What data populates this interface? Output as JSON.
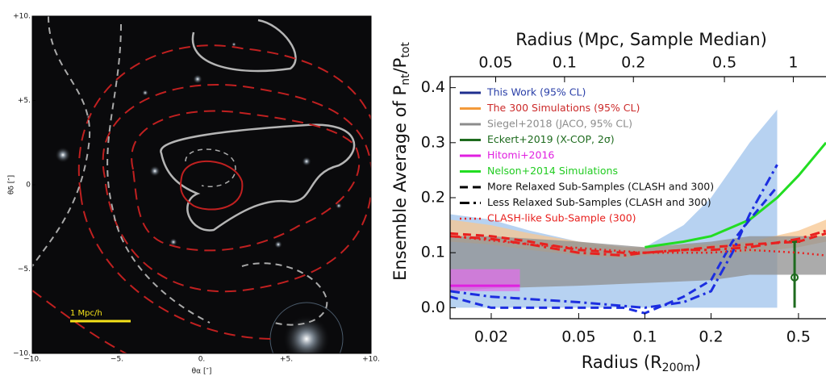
{
  "chart_data": [
    {
      "type": "image",
      "xlabel": "θα [″]",
      "ylabel": "θδ [″]",
      "xlim": [
        -10,
        10
      ],
      "ylim": [
        -10,
        10
      ],
      "xticks": [
        {
          "value": -10,
          "label": "−10."
        },
        {
          "value": -5,
          "label": "−5."
        },
        {
          "value": 0,
          "label": "0."
        },
        {
          "value": 5,
          "label": "+5."
        },
        {
          "value": 10,
          "label": "+10."
        }
      ],
      "yticks": [
        {
          "value": -10,
          "label": "−10."
        },
        {
          "value": -5,
          "label": "−5."
        },
        {
          "value": 0,
          "label": "0"
        },
        {
          "value": 5,
          "label": "+5."
        },
        {
          "value": 10,
          "label": "+10."
        }
      ],
      "scale_bar": "1 Mpc/h"
    },
    {
      "type": "line",
      "xlabel": [
        "Radius (R",
        "200m",
        ")"
      ],
      "x2label": "Radius (Mpc, Sample Median)",
      "ylabel": [
        "Ensemble Average of P",
        "nt",
        "/P",
        "tot"
      ],
      "xscale": "log",
      "xlim": [
        0.013,
        0.667
      ],
      "xticks": [
        0.02,
        0.05,
        0.1,
        0.2,
        0.5
      ],
      "x2lim": [
        0.0316,
        1.39
      ],
      "x2ticks": [
        0.05,
        0.1,
        0.2,
        0.5,
        1
      ],
      "ylim": [
        -0.02,
        0.42
      ],
      "yticks": [
        {
          "value": 0,
          "label": "0.0"
        },
        0.1,
        0.2,
        0.3,
        0.4
      ],
      "legend": "upper left",
      "series": [
        {
          "name": "This Work (95% CL)",
          "kind": "band",
          "color": "#1f2f8f",
          "label_color": "#2a3fa8",
          "fill": "#9fc3ec",
          "style": "solid",
          "x": [
            0.013,
            0.02,
            0.03,
            0.05,
            0.08,
            0.1,
            0.15,
            0.2,
            0.3,
            0.4
          ],
          "lower": [
            0,
            0,
            0,
            0,
            0,
            0,
            0,
            0,
            0,
            0
          ],
          "upper": [
            0.17,
            0.16,
            0.14,
            0.12,
            0.105,
            0.11,
            0.15,
            0.2,
            0.3,
            0.36
          ]
        },
        {
          "name": "The 300 Simulations (95% CL)",
          "kind": "band",
          "color": "#f39a3a",
          "label_color": "#cc2a2a",
          "fill": "#f7c58f",
          "style": "solid",
          "x": [
            0.013,
            0.02,
            0.03,
            0.05,
            0.08,
            0.1,
            0.15,
            0.2,
            0.3,
            0.5,
            0.667
          ],
          "lower": [
            0.12,
            0.115,
            0.105,
            0.095,
            0.09,
            0.095,
            0.1,
            0.1,
            0.1,
            0.11,
            0.12
          ],
          "upper": [
            0.16,
            0.15,
            0.135,
            0.12,
            0.11,
            0.11,
            0.115,
            0.115,
            0.12,
            0.14,
            0.16
          ]
        },
        {
          "name": "Siegel+2018 (JACO, 95% CL)",
          "kind": "band",
          "color": "#8c8c8c",
          "label_color": "#8c8c8c",
          "fill": "#8f8f8f",
          "style": "solid",
          "x": [
            0.013,
            0.02,
            0.05,
            0.1,
            0.2,
            0.3,
            0.5,
            0.667
          ],
          "lower": [
            0.03,
            0.035,
            0.04,
            0.045,
            0.05,
            0.06,
            0.06,
            0.06
          ],
          "upper": [
            0.13,
            0.13,
            0.12,
            0.11,
            0.12,
            0.13,
            0.13,
            0.13
          ]
        },
        {
          "name": "Eckert+2019 (X-COP, 2σ)",
          "kind": "errorbar",
          "color": "#1e6b1e",
          "label_color": "#1e6b1e",
          "style": "solid",
          "x": [
            0.48
          ],
          "values": [
            0.055
          ],
          "lower": [
            0
          ],
          "upper": [
            0.12
          ]
        },
        {
          "name": "Hitomi+2016",
          "kind": "band",
          "color": "#e020e0",
          "label_color": "#e020e0",
          "fill": "#e070e8",
          "style": "solid",
          "x": [
            0.013,
            0.027
          ],
          "values": [
            0.04,
            0.04
          ],
          "lower": [
            0.03,
            0.03
          ],
          "upper": [
            0.07,
            0.07
          ]
        },
        {
          "name": "Nelson+2014 Simulations",
          "kind": "line",
          "color": "#22dd22",
          "label_color": "#22cc22",
          "style": "solid",
          "x": [
            0.1,
            0.15,
            0.2,
            0.3,
            0.4,
            0.5,
            0.667
          ],
          "values": [
            0.11,
            0.12,
            0.13,
            0.16,
            0.2,
            0.24,
            0.3
          ]
        },
        {
          "name": "More Relaxed Sub-Samples (CLASH and 300)",
          "kind": "group",
          "color": "#000000",
          "label_color": "#111111",
          "style": "dashed",
          "curves": [
            {
              "color": "#e8211f",
              "x": [
                0.013,
                0.02,
                0.03,
                0.05,
                0.08,
                0.1,
                0.15,
                0.2,
                0.3,
                0.5,
                0.667
              ],
              "values": [
                0.135,
                0.13,
                0.12,
                0.105,
                0.1,
                0.1,
                0.105,
                0.11,
                0.115,
                0.12,
                0.135
              ]
            },
            {
              "color": "#1c2ee0",
              "x": [
                0.013,
                0.02,
                0.03,
                0.05,
                0.08,
                0.1,
                0.15,
                0.2,
                0.25,
                0.3,
                0.4
              ],
              "values": [
                0.02,
                0,
                0,
                0,
                0,
                -0.01,
                0.02,
                0.05,
                0.12,
                0.16,
                0.22
              ]
            }
          ]
        },
        {
          "name": "Less Relaxed Sub-Samples (CLASH and 300)",
          "kind": "group",
          "color": "#000000",
          "label_color": "#111111",
          "style": "dashdot",
          "curves": [
            {
              "color": "#e8211f",
              "x": [
                0.013,
                0.02,
                0.03,
                0.05,
                0.08,
                0.1,
                0.15,
                0.2,
                0.3,
                0.5,
                0.667
              ],
              "values": [
                0.13,
                0.125,
                0.115,
                0.1,
                0.095,
                0.1,
                0.105,
                0.105,
                0.11,
                0.125,
                0.14
              ]
            },
            {
              "color": "#1c2ee0",
              "x": [
                0.013,
                0.02,
                0.05,
                0.1,
                0.15,
                0.2,
                0.25,
                0.3,
                0.4
              ],
              "values": [
                0.03,
                0.02,
                0.01,
                0,
                0.01,
                0.03,
                0.1,
                0.17,
                0.26
              ]
            }
          ]
        },
        {
          "name": "CLASH-like Sub-Sample (300)",
          "kind": "line",
          "color": "#e8211f",
          "label_color": "#e8211f",
          "style": "dotted",
          "x": [
            0.013,
            0.03,
            0.1,
            0.2,
            0.3,
            0.5,
            0.667
          ],
          "values": [
            0.13,
            0.115,
            0.1,
            0.1,
            0.105,
            0.1,
            0.095
          ]
        }
      ]
    }
  ]
}
